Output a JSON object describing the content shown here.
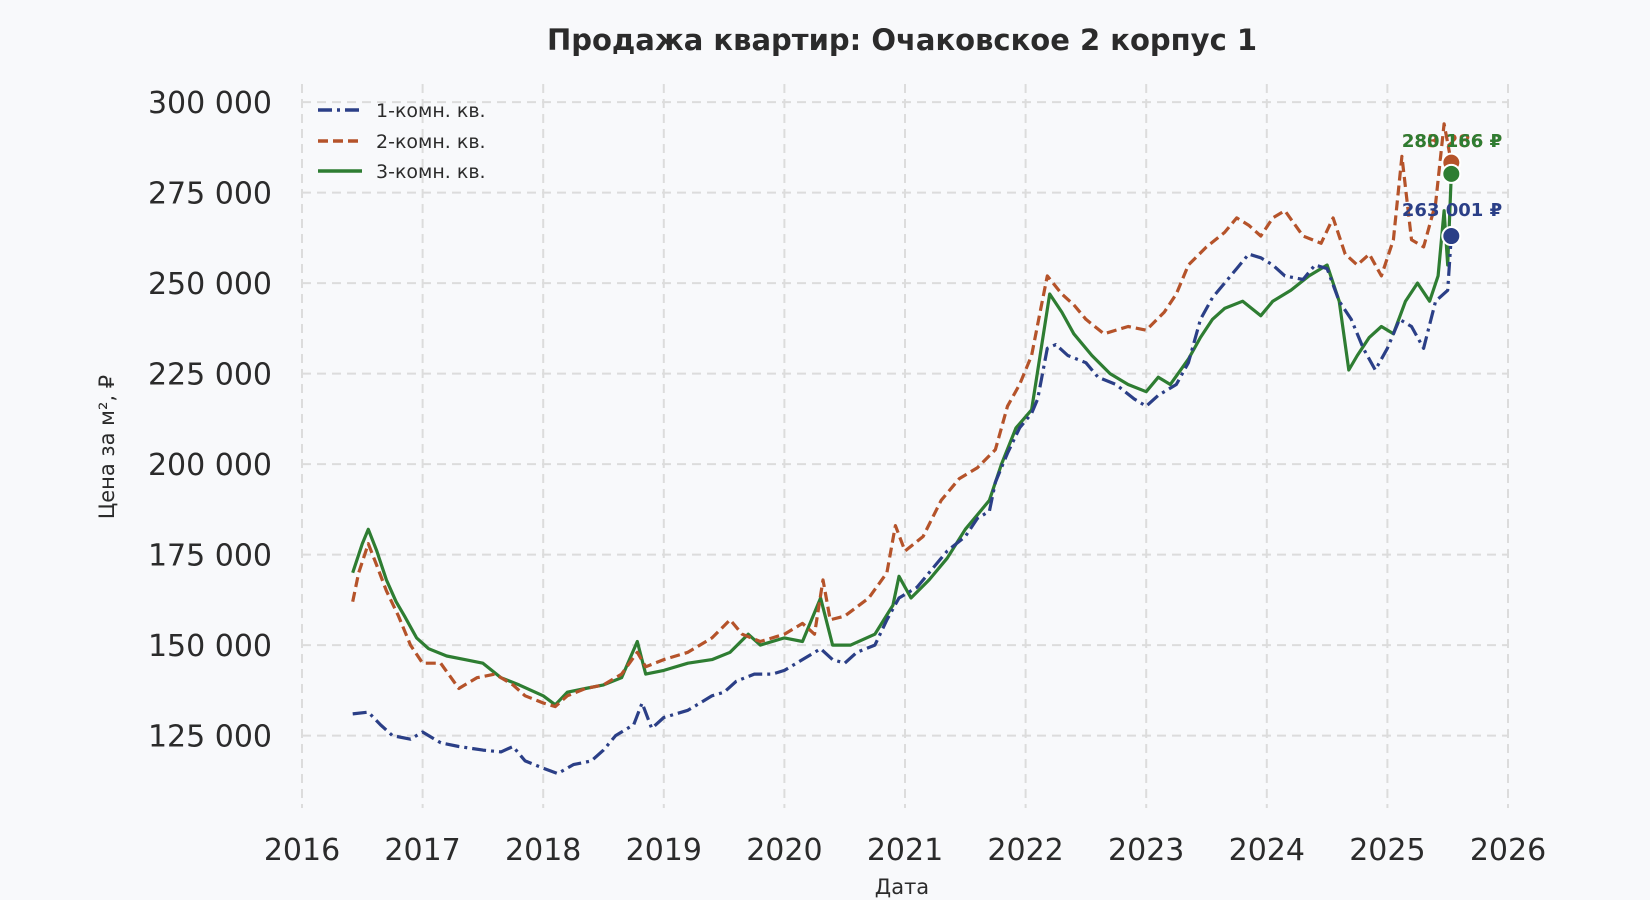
{
  "chart_data": {
    "type": "line",
    "title": "Продажа квартир: Очаковское 2 корпус 1",
    "xlabel": "Дата",
    "ylabel": "Цена за м², ₽",
    "xlim": [
      2016,
      2026
    ],
    "ylim": [
      105000,
      305000
    ],
    "x_ticks": [
      "2016",
      "2017",
      "2018",
      "2019",
      "2020",
      "2021",
      "2022",
      "2023",
      "2024",
      "2025",
      "2026"
    ],
    "y_ticks": [
      "125 000",
      "150 000",
      "175 000",
      "200 000",
      "225 000",
      "250 000",
      "275 000",
      "300 000"
    ],
    "grid": true,
    "legend_position": "top-left",
    "series": [
      {
        "name": "1-комн. кв.",
        "color": "#2b3f87",
        "style": "dashdot",
        "points": [
          [
            2016.42,
            131000
          ],
          [
            2016.55,
            131500
          ],
          [
            2016.65,
            128000
          ],
          [
            2016.75,
            125000
          ],
          [
            2016.9,
            124000
          ],
          [
            2017.0,
            126000
          ],
          [
            2017.15,
            123000
          ],
          [
            2017.3,
            122000
          ],
          [
            2017.5,
            121000
          ],
          [
            2017.65,
            120500
          ],
          [
            2017.75,
            122000
          ],
          [
            2017.85,
            118000
          ],
          [
            2018.0,
            116000
          ],
          [
            2018.12,
            114500
          ],
          [
            2018.25,
            117000
          ],
          [
            2018.4,
            118000
          ],
          [
            2018.5,
            121000
          ],
          [
            2018.6,
            125000
          ],
          [
            2018.75,
            128000
          ],
          [
            2018.82,
            134000
          ],
          [
            2018.9,
            127000
          ],
          [
            2019.0,
            130000
          ],
          [
            2019.2,
            132000
          ],
          [
            2019.4,
            136000
          ],
          [
            2019.5,
            137000
          ],
          [
            2019.6,
            140000
          ],
          [
            2019.75,
            142000
          ],
          [
            2019.9,
            142000
          ],
          [
            2020.0,
            143000
          ],
          [
            2020.2,
            147000
          ],
          [
            2020.3,
            149000
          ],
          [
            2020.4,
            146000
          ],
          [
            2020.5,
            145000
          ],
          [
            2020.6,
            148000
          ],
          [
            2020.75,
            150000
          ],
          [
            2020.85,
            157000
          ],
          [
            2020.95,
            163000
          ],
          [
            2021.1,
            166000
          ],
          [
            2021.25,
            172000
          ],
          [
            2021.35,
            176000
          ],
          [
            2021.5,
            180000
          ],
          [
            2021.6,
            185000
          ],
          [
            2021.7,
            187000
          ],
          [
            2021.75,
            195000
          ],
          [
            2021.85,
            203000
          ],
          [
            2021.95,
            210000
          ],
          [
            2022.05,
            214000
          ],
          [
            2022.1,
            218000
          ],
          [
            2022.18,
            232000
          ],
          [
            2022.25,
            233000
          ],
          [
            2022.35,
            230000
          ],
          [
            2022.5,
            228000
          ],
          [
            2022.6,
            224000
          ],
          [
            2022.75,
            222000
          ],
          [
            2022.9,
            218000
          ],
          [
            2023.0,
            216000
          ],
          [
            2023.1,
            219000
          ],
          [
            2023.25,
            222000
          ],
          [
            2023.35,
            228000
          ],
          [
            2023.45,
            240000
          ],
          [
            2023.55,
            246000
          ],
          [
            2023.65,
            250000
          ],
          [
            2023.75,
            254000
          ],
          [
            2023.85,
            258000
          ],
          [
            2023.95,
            257000
          ],
          [
            2024.05,
            255000
          ],
          [
            2024.15,
            252000
          ],
          [
            2024.3,
            251000
          ],
          [
            2024.4,
            255000
          ],
          [
            2024.5,
            254000
          ],
          [
            2024.6,
            245000
          ],
          [
            2024.7,
            240000
          ],
          [
            2024.8,
            232000
          ],
          [
            2024.9,
            226000
          ],
          [
            2025.0,
            232000
          ],
          [
            2025.1,
            240000
          ],
          [
            2025.2,
            238000
          ],
          [
            2025.3,
            232000
          ],
          [
            2025.4,
            245000
          ],
          [
            2025.5,
            248000
          ],
          [
            2025.53,
            263001
          ]
        ],
        "last_label": "263 001 ₽",
        "last_value": 263001
      },
      {
        "name": "2-комн. кв.",
        "color": "#b5532a",
        "style": "dashed",
        "points": [
          [
            2016.42,
            162000
          ],
          [
            2016.47,
            170000
          ],
          [
            2016.55,
            178000
          ],
          [
            2016.62,
            172000
          ],
          [
            2016.7,
            165000
          ],
          [
            2016.8,
            158000
          ],
          [
            2016.9,
            150000
          ],
          [
            2017.0,
            145000
          ],
          [
            2017.15,
            145000
          ],
          [
            2017.3,
            138000
          ],
          [
            2017.45,
            141000
          ],
          [
            2017.6,
            142000
          ],
          [
            2017.75,
            139000
          ],
          [
            2017.85,
            136000
          ],
          [
            2018.0,
            134000
          ],
          [
            2018.1,
            133000
          ],
          [
            2018.2,
            136000
          ],
          [
            2018.35,
            138000
          ],
          [
            2018.5,
            139000
          ],
          [
            2018.65,
            142000
          ],
          [
            2018.78,
            148000
          ],
          [
            2018.85,
            144000
          ],
          [
            2019.0,
            146000
          ],
          [
            2019.2,
            148000
          ],
          [
            2019.4,
            152000
          ],
          [
            2019.55,
            157000
          ],
          [
            2019.65,
            153000
          ],
          [
            2019.8,
            151000
          ],
          [
            2020.0,
            153000
          ],
          [
            2020.15,
            156000
          ],
          [
            2020.25,
            153000
          ],
          [
            2020.32,
            168000
          ],
          [
            2020.38,
            157000
          ],
          [
            2020.5,
            158000
          ],
          [
            2020.7,
            163000
          ],
          [
            2020.85,
            170000
          ],
          [
            2020.92,
            183000
          ],
          [
            2021.0,
            176000
          ],
          [
            2021.15,
            180000
          ],
          [
            2021.3,
            190000
          ],
          [
            2021.45,
            196000
          ],
          [
            2021.6,
            199000
          ],
          [
            2021.75,
            204000
          ],
          [
            2021.85,
            216000
          ],
          [
            2021.95,
            222000
          ],
          [
            2022.05,
            230000
          ],
          [
            2022.12,
            242000
          ],
          [
            2022.18,
            252000
          ],
          [
            2022.3,
            247000
          ],
          [
            2022.4,
            244000
          ],
          [
            2022.5,
            240000
          ],
          [
            2022.65,
            236000
          ],
          [
            2022.85,
            238000
          ],
          [
            2023.0,
            237000
          ],
          [
            2023.15,
            242000
          ],
          [
            2023.25,
            247000
          ],
          [
            2023.35,
            255000
          ],
          [
            2023.5,
            260000
          ],
          [
            2023.65,
            264000
          ],
          [
            2023.75,
            268000
          ],
          [
            2023.85,
            266000
          ],
          [
            2023.95,
            263000
          ],
          [
            2024.05,
            268000
          ],
          [
            2024.15,
            270000
          ],
          [
            2024.3,
            263000
          ],
          [
            2024.45,
            261000
          ],
          [
            2024.55,
            268000
          ],
          [
            2024.65,
            258000
          ],
          [
            2024.75,
            255000
          ],
          [
            2024.85,
            258000
          ],
          [
            2024.95,
            252000
          ],
          [
            2025.05,
            262000
          ],
          [
            2025.12,
            285000
          ],
          [
            2025.2,
            262000
          ],
          [
            2025.3,
            260000
          ],
          [
            2025.4,
            272000
          ],
          [
            2025.47,
            294000
          ],
          [
            2025.53,
            283286
          ]
        ],
        "last_label": "283 286 ₽",
        "last_value": 283286
      },
      {
        "name": "3-комн. кв.",
        "color": "#2e7d32",
        "style": "solid",
        "points": [
          [
            2016.42,
            170000
          ],
          [
            2016.5,
            178000
          ],
          [
            2016.55,
            182000
          ],
          [
            2016.62,
            176000
          ],
          [
            2016.7,
            168000
          ],
          [
            2016.78,
            162000
          ],
          [
            2016.85,
            158000
          ],
          [
            2016.95,
            152000
          ],
          [
            2017.05,
            149000
          ],
          [
            2017.2,
            147000
          ],
          [
            2017.35,
            146000
          ],
          [
            2017.5,
            145000
          ],
          [
            2017.65,
            141000
          ],
          [
            2017.8,
            139000
          ],
          [
            2018.0,
            136000
          ],
          [
            2018.1,
            133500
          ],
          [
            2018.2,
            137000
          ],
          [
            2018.35,
            138000
          ],
          [
            2018.5,
            139000
          ],
          [
            2018.65,
            141000
          ],
          [
            2018.78,
            151000
          ],
          [
            2018.85,
            142000
          ],
          [
            2019.0,
            143000
          ],
          [
            2019.2,
            145000
          ],
          [
            2019.4,
            146000
          ],
          [
            2019.55,
            148000
          ],
          [
            2019.7,
            153000
          ],
          [
            2019.8,
            150000
          ],
          [
            2020.0,
            152000
          ],
          [
            2020.15,
            151000
          ],
          [
            2020.3,
            163000
          ],
          [
            2020.4,
            150000
          ],
          [
            2020.55,
            150000
          ],
          [
            2020.75,
            153000
          ],
          [
            2020.9,
            161000
          ],
          [
            2020.95,
            169000
          ],
          [
            2021.05,
            163000
          ],
          [
            2021.2,
            168000
          ],
          [
            2021.35,
            174000
          ],
          [
            2021.5,
            182000
          ],
          [
            2021.6,
            186000
          ],
          [
            2021.7,
            190000
          ],
          [
            2021.8,
            200000
          ],
          [
            2021.92,
            210000
          ],
          [
            2022.05,
            215000
          ],
          [
            2022.12,
            230000
          ],
          [
            2022.2,
            247000
          ],
          [
            2022.3,
            242000
          ],
          [
            2022.4,
            236000
          ],
          [
            2022.55,
            230000
          ],
          [
            2022.7,
            225000
          ],
          [
            2022.85,
            222000
          ],
          [
            2023.0,
            220000
          ],
          [
            2023.1,
            224000
          ],
          [
            2023.2,
            222000
          ],
          [
            2023.35,
            229000
          ],
          [
            2023.45,
            235000
          ],
          [
            2023.55,
            240000
          ],
          [
            2023.65,
            243000
          ],
          [
            2023.8,
            245000
          ],
          [
            2023.95,
            241000
          ],
          [
            2024.05,
            245000
          ],
          [
            2024.2,
            248000
          ],
          [
            2024.35,
            252000
          ],
          [
            2024.5,
            255000
          ],
          [
            2024.6,
            245000
          ],
          [
            2024.68,
            226000
          ],
          [
            2024.75,
            230000
          ],
          [
            2024.85,
            235000
          ],
          [
            2024.95,
            238000
          ],
          [
            2025.05,
            236000
          ],
          [
            2025.15,
            245000
          ],
          [
            2025.25,
            250000
          ],
          [
            2025.35,
            245000
          ],
          [
            2025.42,
            252000
          ],
          [
            2025.47,
            270000
          ],
          [
            2025.5,
            255000
          ],
          [
            2025.53,
            280166
          ]
        ],
        "last_label": "280 166 ₽",
        "last_value": 280166
      }
    ]
  }
}
